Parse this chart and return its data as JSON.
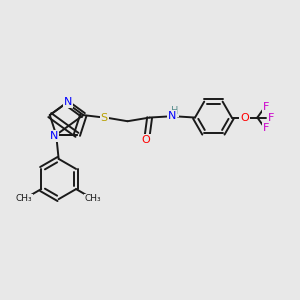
{
  "bg_color": "#e8e8e8",
  "bond_color": "#1a1a1a",
  "bond_width": 1.4,
  "fig_size": [
    3.0,
    3.0
  ],
  "dpi": 100,
  "xlim": [
    0,
    12
  ],
  "ylim": [
    0,
    12
  ]
}
